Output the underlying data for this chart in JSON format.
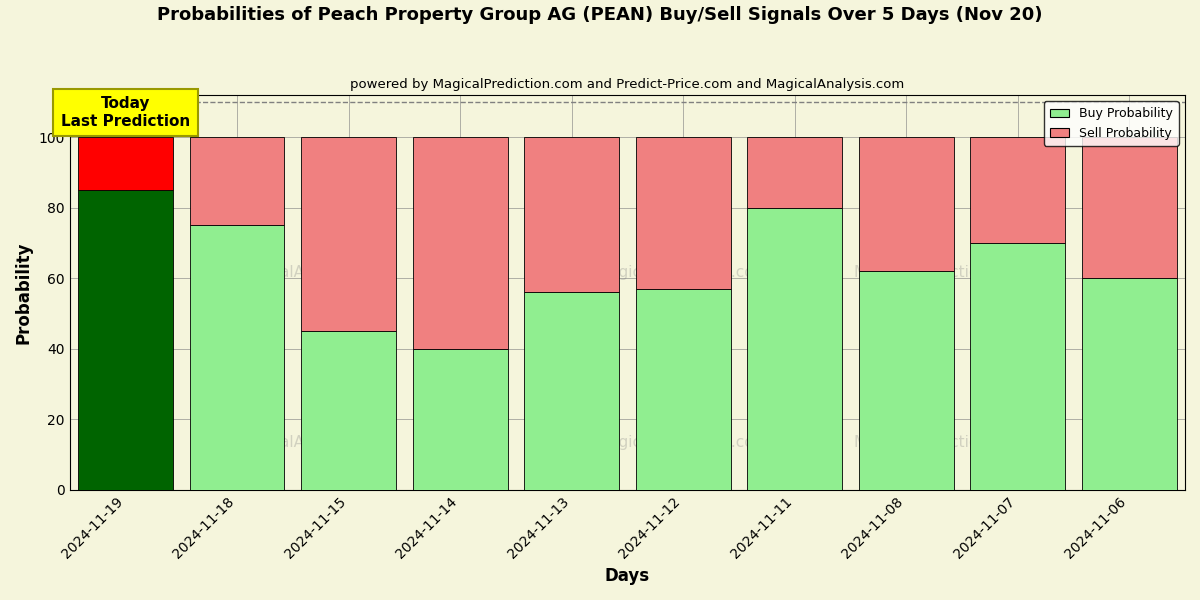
{
  "title": "Probabilities of Peach Property Group AG (PEAN) Buy/Sell Signals Over 5 Days (Nov 20)",
  "subtitle": "powered by MagicalPrediction.com and Predict-Price.com and MagicalAnalysis.com",
  "xlabel": "Days",
  "ylabel": "Probability",
  "dates": [
    "2024-11-19",
    "2024-11-18",
    "2024-11-15",
    "2024-11-14",
    "2024-11-13",
    "2024-11-12",
    "2024-11-11",
    "2024-11-08",
    "2024-11-07",
    "2024-11-06"
  ],
  "buy_probs": [
    85,
    75,
    45,
    40,
    56,
    57,
    80,
    62,
    70,
    60
  ],
  "sell_probs": [
    15,
    25,
    55,
    60,
    44,
    43,
    20,
    38,
    30,
    40
  ],
  "today_buy_color": "#006400",
  "today_sell_color": "#FF0000",
  "buy_color": "#90EE90",
  "sell_color": "#F08080",
  "ylim": [
    0,
    112
  ],
  "yticks": [
    0,
    20,
    40,
    60,
    80,
    100
  ],
  "dashed_line_y": 110,
  "today_annotation_text": "Today\nLast Prediction",
  "today_annotation_bg": "#FFFF00",
  "legend_buy_label": "Buy Probability",
  "legend_sell_label": "Sell Probability",
  "fig_bg_color": "#F5F5DC",
  "plot_bg_color": "#F5F5DC",
  "figsize": [
    12,
    6
  ],
  "dpi": 100,
  "bar_width": 0.85
}
